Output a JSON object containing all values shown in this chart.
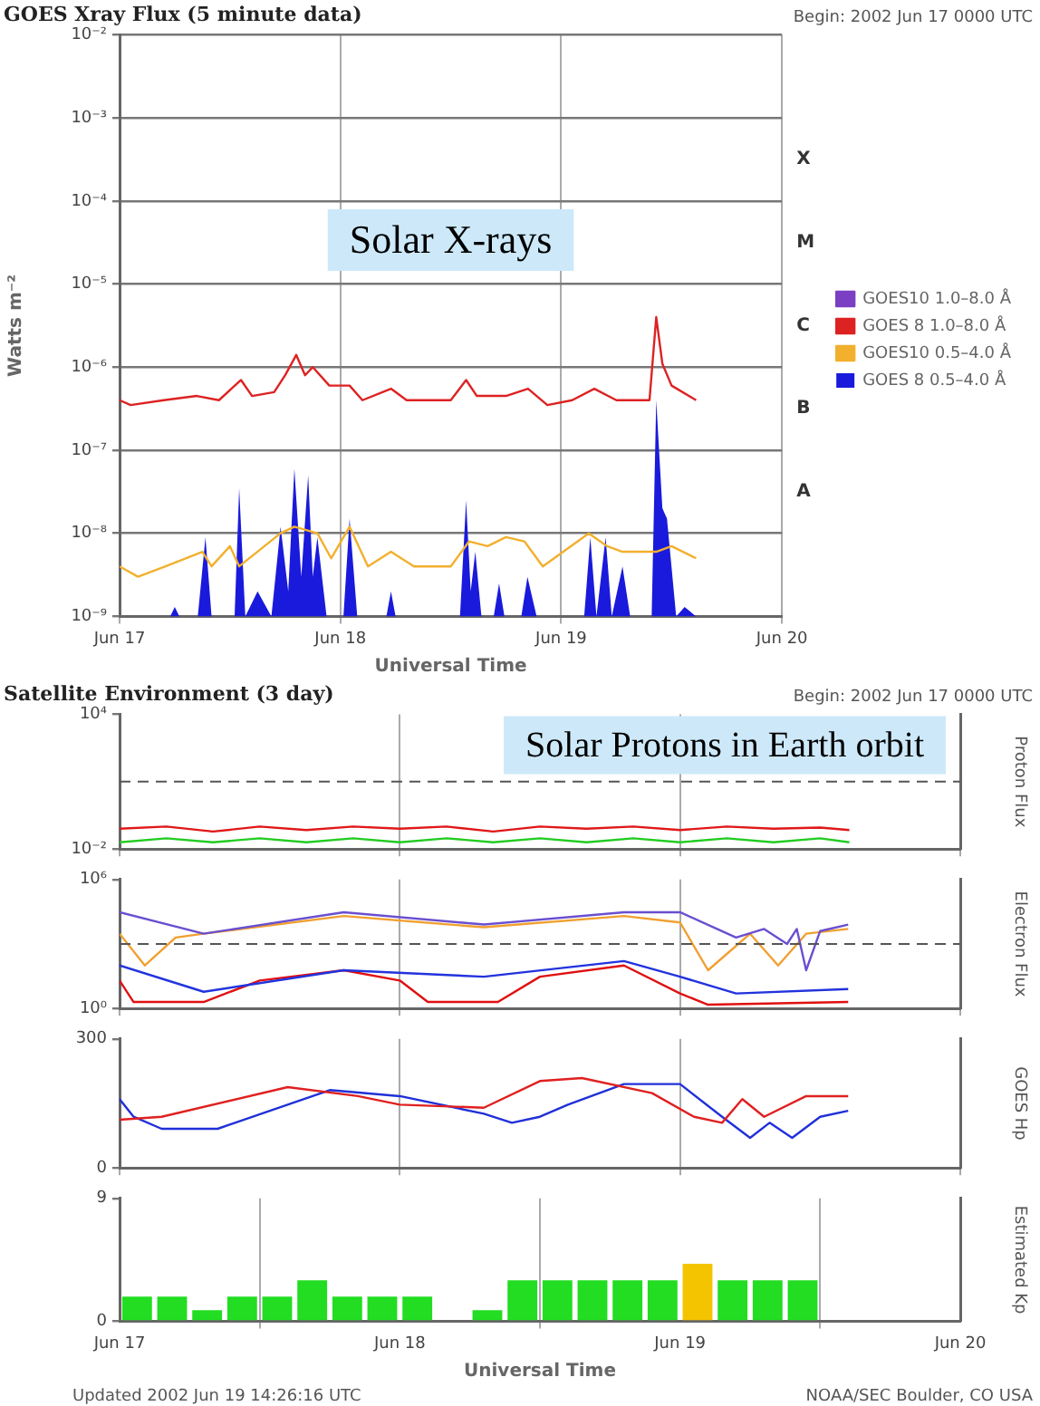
{
  "chart_data": [
    {
      "type": "line",
      "title": "GOES Xray Flux (5 minute data)",
      "ylabel": "Watts m⁻²",
      "xlabel": "Universal Time",
      "annotations": [
        "Begin: 2002 Jun 17 0000 UTC",
        "Solar X-rays",
        "A",
        "B",
        "C",
        "M",
        "X"
      ],
      "xlim": [
        "2002-06-17",
        "2002-06-20"
      ],
      "xticks": [
        {
          "value": "2002-06-17",
          "label": "Jun 17"
        },
        {
          "value": "2002-06-18",
          "label": "Jun 18"
        },
        {
          "value": "2002-06-19",
          "label": "Jun 19"
        },
        {
          "value": "2002-06-20",
          "label": "Jun 20"
        }
      ],
      "log": "y",
      "ylim": [
        1e-09,
        0.01
      ],
      "yticks": [
        {
          "value": 1e-09,
          "label": "10⁻⁹"
        },
        {
          "value": 1e-08,
          "label": "10⁻⁸"
        },
        {
          "value": 1e-07,
          "label": "10⁻⁷"
        },
        {
          "value": 1e-06,
          "label": "10⁻⁶"
        },
        {
          "value": 1e-05,
          "label": "10⁻⁵"
        },
        {
          "value": 0.0001,
          "label": "10⁻⁴"
        },
        {
          "value": 0.001,
          "label": "10⁻³"
        },
        {
          "value": 0.01,
          "label": "10⁻²"
        }
      ],
      "grid": true,
      "legend": "right",
      "series": [
        {
          "name": "GOES10 1.0–8.0 Å",
          "color": "#7b3fc4"
        },
        {
          "name": "GOES 8 1.0–8.0 Å",
          "color": "#dd2222",
          "x": [
            "2002-06-17T00:00",
            "2002-06-17T01:12",
            "2002-06-17T04:48",
            "2002-06-17T08:24",
            "2002-06-17T10:48",
            "2002-06-17T13:12",
            "2002-06-17T14:24",
            "2002-06-17T16:48",
            "2002-06-17T18:00",
            "2002-06-17T19:12",
            "2002-06-17T20:10",
            "2002-06-17T21:00",
            "2002-06-17T22:48",
            "2002-06-18T01:00",
            "2002-06-18T02:24",
            "2002-06-18T05:30",
            "2002-06-18T07:12",
            "2002-06-18T12:00",
            "2002-06-18T13:40",
            "2002-06-18T14:50",
            "2002-06-18T18:00",
            "2002-06-18T20:24",
            "2002-06-18T22:30",
            "2002-06-19T01:12",
            "2002-06-19T03:36",
            "2002-06-19T06:00",
            "2002-06-19T09:36",
            "2002-06-19T10:20",
            "2002-06-19T11:00",
            "2002-06-19T12:00",
            "2002-06-19T14:40"
          ],
          "values": [
            4e-07,
            3.5e-07,
            4e-07,
            4.5e-07,
            4e-07,
            7e-07,
            4.5e-07,
            5e-07,
            8e-07,
            1.4e-06,
            8e-07,
            1e-06,
            6e-07,
            6e-07,
            4e-07,
            5.5e-07,
            4e-07,
            4e-07,
            7e-07,
            4.5e-07,
            4.5e-07,
            5.5e-07,
            3.5e-07,
            4e-07,
            5.5e-07,
            4e-07,
            4e-07,
            4e-06,
            1.1e-06,
            6e-07,
            4e-07
          ]
        },
        {
          "name": "GOES10 0.5–4.0 Å",
          "color": "#f2b02e",
          "x": [
            "2002-06-17T00:00",
            "2002-06-17T02:00",
            "2002-06-17T05:00",
            "2002-06-17T09:00",
            "2002-06-17T10:00",
            "2002-06-17T12:00",
            "2002-06-17T13:00",
            "2002-06-17T17:30",
            "2002-06-17T19:00",
            "2002-06-17T21:30",
            "2002-06-17T23:00",
            "2002-06-18T01:00",
            "2002-06-18T03:00",
            "2002-06-18T05:30",
            "2002-06-18T08:00",
            "2002-06-18T12:00",
            "2002-06-18T14:00",
            "2002-06-18T16:00",
            "2002-06-18T18:00",
            "2002-06-18T20:00",
            "2002-06-18T22:00",
            "2002-06-19T03:00",
            "2002-06-19T05:00",
            "2002-06-19T06:40",
            "2002-06-19T10:20",
            "2002-06-19T12:00",
            "2002-06-19T14:40"
          ],
          "values": [
            4e-09,
            3e-09,
            4e-09,
            6e-09,
            4e-09,
            7e-09,
            4e-09,
            1e-08,
            1.2e-08,
            1e-08,
            5e-09,
            1.2e-08,
            4e-09,
            6e-09,
            4e-09,
            4e-09,
            8e-09,
            7e-09,
            9e-09,
            8e-09,
            4e-09,
            1e-08,
            7e-09,
            6e-09,
            6e-09,
            7e-09,
            5e-09
          ]
        },
        {
          "name": "GOES 8 0.5–4.0 Å",
          "type": "area",
          "color": "#1a1adc",
          "x": [
            "2002-06-17T00:00",
            "2002-06-17T05:30",
            "2002-06-17T06:00",
            "2002-06-17T06:30",
            "2002-06-17T08:30",
            "2002-06-17T09:20",
            "2002-06-17T10:00",
            "2002-06-17T12:30",
            "2002-06-17T13:00",
            "2002-06-17T13:40",
            "2002-06-17T15:00",
            "2002-06-17T16:30",
            "2002-06-17T17:30",
            "2002-06-17T18:20",
            "2002-06-17T19:00",
            "2002-06-17T19:45",
            "2002-06-17T20:30",
            "2002-06-17T21:00",
            "2002-06-17T21:30",
            "2002-06-17T22:30",
            "2002-06-18T00:20",
            "2002-06-18T01:00",
            "2002-06-18T01:50",
            "2002-06-18T05:00",
            "2002-06-18T05:30",
            "2002-06-18T06:00",
            "2002-06-18T13:00",
            "2002-06-18T13:40",
            "2002-06-18T14:10",
            "2002-06-18T14:40",
            "2002-06-18T15:20",
            "2002-06-18T16:40",
            "2002-06-18T17:15",
            "2002-06-18T17:50",
            "2002-06-18T19:40",
            "2002-06-18T20:20",
            "2002-06-18T21:20",
            "2002-06-19T02:30",
            "2002-06-19T03:10",
            "2002-06-19T03:50",
            "2002-06-19T04:50",
            "2002-06-19T05:30",
            "2002-06-19T06:40",
            "2002-06-19T07:30",
            "2002-06-19T09:50",
            "2002-06-19T10:20",
            "2002-06-19T11:00",
            "2002-06-19T11:30",
            "2002-06-19T12:30",
            "2002-06-19T13:25",
            "2002-06-19T14:40"
          ],
          "values": [
            1e-09,
            1e-09,
            1.3e-09,
            1e-09,
            1e-09,
            9e-09,
            1e-09,
            1e-09,
            3.5e-08,
            1e-09,
            2e-09,
            1e-09,
            1.2e-08,
            2e-09,
            6e-08,
            3e-09,
            5e-08,
            3e-09,
            9e-09,
            1e-09,
            1e-09,
            1.5e-08,
            1e-09,
            1e-09,
            2e-09,
            1e-09,
            1e-09,
            2.5e-08,
            2e-09,
            6e-09,
            1e-09,
            1e-09,
            2.5e-09,
            1e-09,
            1e-09,
            3e-09,
            1e-09,
            1e-09,
            9e-09,
            1e-09,
            9e-09,
            1e-09,
            4e-09,
            1e-09,
            1e-09,
            4e-07,
            2e-08,
            1.5e-08,
            1e-09,
            1.3e-09,
            1e-09
          ]
        }
      ]
    },
    {
      "type": "line",
      "title": "Satellite Environment (3 day)",
      "ylabel": "Proton Flux",
      "annotations": [
        "Begin: 2002 Jun 17 0000 UTC",
        "Solar Protons in Earth orbit"
      ],
      "xlim": [
        "2002-06-17",
        "2002-06-20"
      ],
      "xticks": [
        {
          "value": "2002-06-17",
          "label": null
        },
        {
          "value": "2002-06-18",
          "label": null
        },
        {
          "value": "2002-06-19",
          "label": null
        },
        {
          "value": "2002-06-20",
          "label": null
        }
      ],
      "tick_labels": "y",
      "log": "y",
      "ylim": [
        0.01,
        10000
      ],
      "yticks": [
        {
          "value": 0.01,
          "label": "10⁻²"
        },
        {
          "value": 10000,
          "label": "10⁴"
        }
      ],
      "grid": "x",
      "ref_lines": [
        {
          "axis": "y",
          "value": 10,
          "line_style": "dashed"
        }
      ],
      "series": [
        {
          "color": "#e01818",
          "x": [
            "2002-06-17T00:00",
            "2002-06-17T04:00",
            "2002-06-17T08:00",
            "2002-06-17T12:00",
            "2002-06-17T16:00",
            "2002-06-17T20:00",
            "2002-06-18T00:00",
            "2002-06-18T04:00",
            "2002-06-18T08:00",
            "2002-06-18T12:00",
            "2002-06-18T16:00",
            "2002-06-18T20:00",
            "2002-06-19T00:00",
            "2002-06-19T04:00",
            "2002-06-19T08:00",
            "2002-06-19T12:00",
            "2002-06-19T14:30"
          ],
          "values": [
            0.08,
            0.1,
            0.06,
            0.1,
            0.07,
            0.1,
            0.08,
            0.1,
            0.06,
            0.1,
            0.08,
            0.1,
            0.07,
            0.1,
            0.08,
            0.09,
            0.07
          ]
        },
        {
          "color": "#22cc22",
          "x": [
            "2002-06-17T00:00",
            "2002-06-17T04:00",
            "2002-06-17T08:00",
            "2002-06-17T12:00",
            "2002-06-17T16:00",
            "2002-06-17T20:00",
            "2002-06-18T00:00",
            "2002-06-18T04:00",
            "2002-06-18T08:00",
            "2002-06-18T12:00",
            "2002-06-18T16:00",
            "2002-06-18T20:00",
            "2002-06-19T00:00",
            "2002-06-19T04:00",
            "2002-06-19T08:00",
            "2002-06-19T12:00",
            "2002-06-19T14:30"
          ],
          "values": [
            0.02,
            0.03,
            0.02,
            0.03,
            0.02,
            0.03,
            0.02,
            0.03,
            0.02,
            0.03,
            0.02,
            0.03,
            0.02,
            0.03,
            0.02,
            0.03,
            0.02
          ]
        }
      ]
    },
    {
      "type": "line",
      "ylabel": "Electron Flux",
      "xlim": [
        "2002-06-17",
        "2002-06-20"
      ],
      "xticks": [
        {
          "value": "2002-06-17",
          "label": null
        },
        {
          "value": "2002-06-18",
          "label": null
        },
        {
          "value": "2002-06-19",
          "label": null
        },
        {
          "value": "2002-06-20",
          "label": null
        }
      ],
      "tick_labels": "y",
      "log": "y",
      "ylim": [
        1,
        1000000
      ],
      "yticks": [
        {
          "value": 1,
          "label": "10⁰"
        },
        {
          "value": 1000000,
          "label": "10⁶"
        }
      ],
      "grid": "x",
      "ref_lines": [
        {
          "axis": "y",
          "value": 1000,
          "line_style": "dashed"
        }
      ],
      "series": [
        {
          "color": "#6a4fd0",
          "x": [
            "2002-06-17T00:00",
            "2002-06-17T07:12",
            "2002-06-17T19:12",
            "2002-06-18T07:12",
            "2002-06-18T19:12",
            "2002-06-19T00:00",
            "2002-06-19T04:48",
            "2002-06-19T07:12",
            "2002-06-19T09:10",
            "2002-06-19T10:00",
            "2002-06-19T10:48",
            "2002-06-19T12:00",
            "2002-06-19T14:24"
          ],
          "values": [
            30000,
            3000,
            30000,
            8000,
            30000,
            30000,
            2000,
            5000,
            1000,
            5000,
            60,
            4000,
            8000
          ]
        },
        {
          "color": "#f0a030",
          "x": [
            "2002-06-17T00:00",
            "2002-06-17T02:10",
            "2002-06-17T04:48",
            "2002-06-17T07:12",
            "2002-06-17T19:12",
            "2002-06-18T07:12",
            "2002-06-18T19:12",
            "2002-06-19T00:00",
            "2002-06-19T02:24",
            "2002-06-19T06:00",
            "2002-06-19T08:24",
            "2002-06-19T10:48",
            "2002-06-19T14:24"
          ],
          "values": [
            3000,
            100,
            2000,
            3000,
            20000,
            6000,
            20000,
            10000,
            60,
            3000,
            100,
            3000,
            5000
          ]
        },
        {
          "color": "#2233dd",
          "x": [
            "2002-06-17T00:00",
            "2002-06-17T07:12",
            "2002-06-17T19:12",
            "2002-06-18T07:12",
            "2002-06-18T19:12",
            "2002-06-19T00:00",
            "2002-06-19T04:48",
            "2002-06-19T14:24"
          ],
          "values": [
            100,
            6,
            60,
            30,
            160,
            30,
            5,
            8
          ]
        },
        {
          "color": "#e01010",
          "x": [
            "2002-06-17T00:00",
            "2002-06-17T01:12",
            "2002-06-17T07:12",
            "2002-06-17T12:00",
            "2002-06-17T19:12",
            "2002-06-18T00:00",
            "2002-06-18T02:24",
            "2002-06-18T08:24",
            "2002-06-18T12:00",
            "2002-06-18T19:12",
            "2002-06-19T00:00",
            "2002-06-19T02:24",
            "2002-06-19T14:24"
          ],
          "values": [
            20,
            2,
            2,
            20,
            60,
            20,
            2,
            2,
            30,
            100,
            5,
            1.5,
            2
          ]
        }
      ]
    },
    {
      "type": "line",
      "ylabel": "GOES Hp",
      "xlim": [
        "2002-06-17",
        "2002-06-20"
      ],
      "xticks": [
        {
          "value": "2002-06-17",
          "label": null
        },
        {
          "value": "2002-06-18",
          "label": null
        },
        {
          "value": "2002-06-19",
          "label": null
        },
        {
          "value": "2002-06-20",
          "label": null
        }
      ],
      "tick_labels": "y",
      "ylim": [
        0,
        300
      ],
      "yticks": [
        0,
        300
      ],
      "grid": "x",
      "series": [
        {
          "color": "#e02020",
          "x": [
            "2002-06-17T00:00",
            "2002-06-17T03:36",
            "2002-06-17T14:24",
            "2002-06-17T20:24",
            "2002-06-18T00:00",
            "2002-06-18T07:12",
            "2002-06-18T12:00",
            "2002-06-18T15:36",
            "2002-06-18T21:36",
            "2002-06-19T01:12",
            "2002-06-19T03:36",
            "2002-06-19T05:20",
            "2002-06-19T07:12",
            "2002-06-19T10:48",
            "2002-06-19T14:24"
          ],
          "values": [
            112,
            119,
            188,
            167,
            147,
            140,
            202,
            209,
            174,
            119,
            105,
            160,
            119,
            167,
            167
          ]
        },
        {
          "color": "#2030d8",
          "x": [
            "2002-06-17T00:00",
            "2002-06-17T01:12",
            "2002-06-17T03:36",
            "2002-06-17T08:24",
            "2002-06-17T18:00",
            "2002-06-18T00:00",
            "2002-06-18T07:12",
            "2002-06-18T09:36",
            "2002-06-18T12:00",
            "2002-06-18T14:24",
            "2002-06-18T19:12",
            "2002-06-19T00:00",
            "2002-06-19T03:36",
            "2002-06-19T06:00",
            "2002-06-19T07:40",
            "2002-06-19T09:36",
            "2002-06-19T12:00",
            "2002-06-19T14:24"
          ],
          "values": [
            160,
            119,
            91,
            91,
            181,
            167,
            126,
            105,
            119,
            147,
            195,
            195,
            119,
            70,
            105,
            70,
            119,
            133
          ]
        }
      ]
    },
    {
      "type": "bar",
      "ylabel": "Estimated Kp",
      "xlabel": "Universal Time",
      "annotations": [
        "Updated 2002 Jun 19 14:26:16 UTC",
        "NOAA/SEC Boulder, CO USA"
      ],
      "xlim": [
        "2002-06-17",
        "2002-06-20"
      ],
      "xticks": [
        {
          "value": "2002-06-17",
          "label": "Jun 17"
        },
        {
          "value": "2002-06-18",
          "label": "Jun 18"
        },
        {
          "value": "2002-06-19",
          "label": "Jun 19"
        },
        {
          "value": "2002-06-20",
          "label": "Jun 20"
        }
      ],
      "ylim": [
        0,
        9
      ],
      "yticks": [
        0,
        9
      ],
      "grid": "x",
      "x": [
        "2002-06-17T01:30",
        "2002-06-17T04:30",
        "2002-06-17T07:30",
        "2002-06-17T10:30",
        "2002-06-17T13:30",
        "2002-06-17T16:30",
        "2002-06-17T19:30",
        "2002-06-17T22:30",
        "2002-06-18T01:30",
        "2002-06-18T04:30",
        "2002-06-18T07:30",
        "2002-06-18T10:30",
        "2002-06-18T13:30",
        "2002-06-18T16:30",
        "2002-06-18T19:30",
        "2002-06-18T22:30",
        "2002-06-19T01:30",
        "2002-06-19T04:30",
        "2002-06-19T07:30",
        "2002-06-19T10:30"
      ],
      "values": [
        1.8,
        1.8,
        0.8,
        1.8,
        1.8,
        3,
        1.8,
        1.8,
        1.8,
        0,
        0.8,
        3,
        3,
        3,
        3,
        3,
        4.2,
        3,
        3,
        3
      ],
      "colors": [
        "#22dd22",
        "#22dd22",
        "#22dd22",
        "#22dd22",
        "#22dd22",
        "#22dd22",
        "#22dd22",
        "#22dd22",
        "#22dd22",
        "#22dd22",
        "#22dd22",
        "#22dd22",
        "#22dd22",
        "#22dd22",
        "#22dd22",
        "#22dd22",
        "#f5c400",
        "#22dd22",
        "#22dd22",
        "#22dd22"
      ]
    }
  ]
}
